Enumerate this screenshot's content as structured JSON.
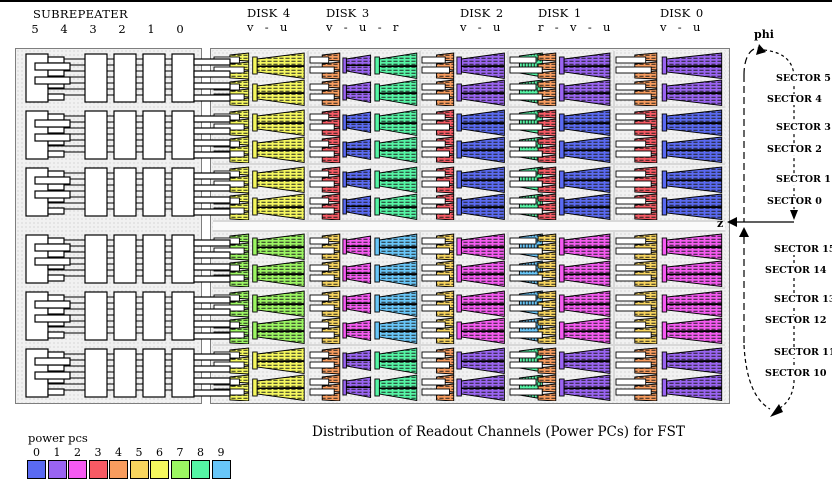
{
  "page_title": "Distribution of Readout Channels (Power PCs) for FST",
  "subrepeater": {
    "label": "SUBREPEATER",
    "slots": [
      "5",
      "4",
      "3",
      "2",
      "1",
      "0"
    ]
  },
  "disks": [
    {
      "label": "DISK 4",
      "planes": "v  -  u",
      "type": "single",
      "rows": [
        [
          6
        ],
        [
          6
        ],
        [
          6
        ],
        [
          7
        ],
        [
          7
        ],
        [
          6
        ]
      ]
    },
    {
      "label": "DISK 3",
      "planes": "v  -  u  -  r",
      "type": "vur",
      "rows": [
        [
          4,
          1,
          8
        ],
        [
          3,
          0,
          8
        ],
        [
          3,
          0,
          8
        ],
        [
          5,
          2,
          9
        ],
        [
          5,
          2,
          9
        ],
        [
          4,
          1,
          8
        ]
      ]
    },
    {
      "label": "DISK 2",
      "planes": "v  -  u",
      "type": "vu",
      "rows": [
        [
          4,
          1
        ],
        [
          3,
          0
        ],
        [
          3,
          0
        ],
        [
          5,
          2
        ],
        [
          5,
          2
        ],
        [
          4,
          1
        ]
      ]
    },
    {
      "label": "DISK 1",
      "planes": "r  -  v  -  u",
      "type": "rvu",
      "rows": [
        [
          8,
          4,
          1
        ],
        [
          8,
          3,
          0
        ],
        [
          8,
          3,
          0
        ],
        [
          9,
          5,
          2
        ],
        [
          9,
          5,
          2
        ],
        [
          8,
          4,
          1
        ]
      ]
    },
    {
      "label": "DISK 0",
      "planes": "v  -  u",
      "type": "vu",
      "rows": [
        [
          4,
          1
        ],
        [
          3,
          0
        ],
        [
          3,
          0
        ],
        [
          5,
          2
        ],
        [
          5,
          2
        ],
        [
          4,
          1
        ]
      ]
    }
  ],
  "axes": {
    "phi_label": "phi",
    "z_label": "z",
    "sectors_top": [
      "SECTOR 5",
      "SECTOR 4",
      "SECTOR 3",
      "SECTOR 2",
      "SECTOR 1",
      "SECTOR 0"
    ],
    "sectors_bottom": [
      "SECTOR 15",
      "SECTOR 14",
      "SECTOR 13",
      "SECTOR 12",
      "SECTOR 11",
      "SECTOR 10"
    ]
  },
  "legend": {
    "label": "power pcs",
    "entries": [
      {
        "id": "0",
        "color": "#5a6af2"
      },
      {
        "id": "1",
        "color": "#9a64f2"
      },
      {
        "id": "2",
        "color": "#f55af2"
      },
      {
        "id": "3",
        "color": "#f75a64"
      },
      {
        "id": "4",
        "color": "#f89c5e"
      },
      {
        "id": "5",
        "color": "#f8d55e"
      },
      {
        "id": "6",
        "color": "#f5f85e"
      },
      {
        "id": "7",
        "color": "#9cf662"
      },
      {
        "id": "8",
        "color": "#55f5a5"
      },
      {
        "id": "9",
        "color": "#68c6f8"
      }
    ]
  }
}
